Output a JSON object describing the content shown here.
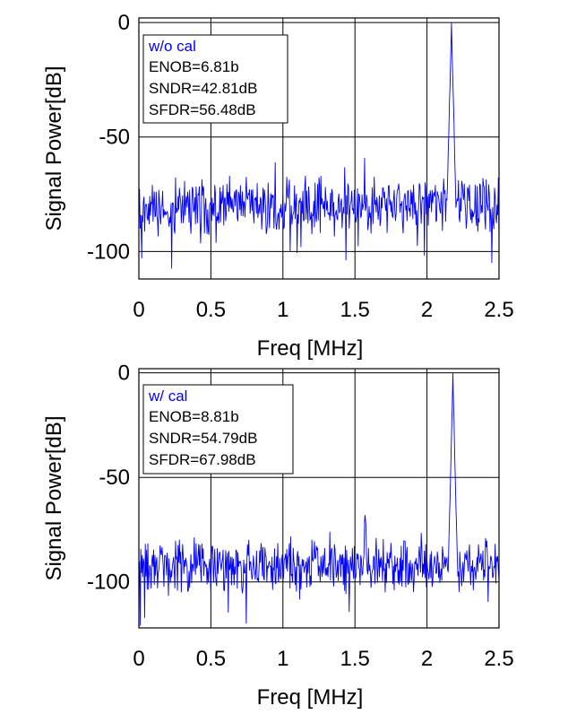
{
  "chart_data": [
    {
      "type": "line",
      "title": "",
      "xlabel": "Freq [MHz]",
      "ylabel": "Signal Power[dB]",
      "xlim": [
        0,
        2.5
      ],
      "ylim": [
        -112,
        2
      ],
      "xticks": [
        "0",
        "0.5",
        "1",
        "1.5",
        "2",
        "2.5"
      ],
      "yticks": [
        "0",
        "-50",
        "-100"
      ],
      "grid": true,
      "legend_position": "top-left",
      "legend": {
        "title": "w/o cal",
        "lines": [
          "ENOB=6.81b",
          "SNDR=42.81dB",
          "SFDR=56.48dB"
        ]
      },
      "series": [
        {
          "color": "#0000ff",
          "noise_floor_db": -80,
          "peak": {
            "x": 2.17,
            "y": 0
          },
          "spurs": [],
          "x": [
            0,
            0.02,
            0.05,
            0.1,
            0.15,
            0.2,
            0.3,
            0.4,
            0.5,
            0.6,
            0.7,
            0.8,
            0.9,
            1.0,
            1.05,
            1.1,
            1.2,
            1.3,
            1.4,
            1.5,
            1.6,
            1.7,
            1.8,
            1.9,
            2.0,
            2.1,
            2.15,
            2.17,
            2.19,
            2.25,
            2.3,
            2.4,
            2.45,
            2.5
          ],
          "y": [
            -75,
            -103,
            -80,
            -82,
            -70,
            -78,
            -84,
            -76,
            -80,
            -83,
            -74,
            -85,
            -79,
            -81,
            -100,
            -78,
            -80,
            -76,
            -82,
            -84,
            -79,
            -80,
            -77,
            -83,
            -80,
            -78,
            -75,
            0,
            -72,
            -80,
            -82,
            -79,
            -105,
            -81
          ]
        }
      ]
    },
    {
      "type": "line",
      "title": "",
      "xlabel": "Freq [MHz]",
      "ylabel": "Signal Power[dB]",
      "xlim": [
        0,
        2.5
      ],
      "ylim": [
        -122,
        2
      ],
      "xticks": [
        "0",
        "0.5",
        "1",
        "1.5",
        "2",
        "2.5"
      ],
      "yticks": [
        "0",
        "-50",
        "-100"
      ],
      "grid": true,
      "legend_position": "top-left",
      "legend": {
        "title": "w/ cal",
        "lines": [
          "ENOB=8.81b",
          "SNDR=54.79dB",
          "SFDR=67.98dB"
        ]
      },
      "series": [
        {
          "color": "#0000ff",
          "noise_floor_db": -92,
          "peak": {
            "x": 2.18,
            "y": 0
          },
          "spurs": [
            {
              "x": 1.57,
              "y": -68
            }
          ],
          "x": [
            0,
            0.01,
            0.05,
            0.1,
            0.2,
            0.3,
            0.45,
            0.5,
            0.6,
            0.7,
            0.8,
            0.9,
            1.0,
            1.1,
            1.2,
            1.3,
            1.4,
            1.5,
            1.57,
            1.6,
            1.7,
            1.8,
            1.9,
            2.0,
            2.1,
            2.16,
            2.18,
            2.2,
            2.25,
            2.3,
            2.4,
            2.5
          ],
          "y": [
            -90,
            -121,
            -93,
            -90,
            -92,
            -91,
            -103,
            -92,
            -90,
            -93,
            -91,
            -92,
            -90,
            -93,
            -91,
            -92,
            -90,
            -91,
            -68,
            -92,
            -90,
            -93,
            -91,
            -90,
            -89,
            -85,
            0,
            -86,
            -91,
            -92,
            -90,
            -91
          ]
        }
      ]
    }
  ]
}
